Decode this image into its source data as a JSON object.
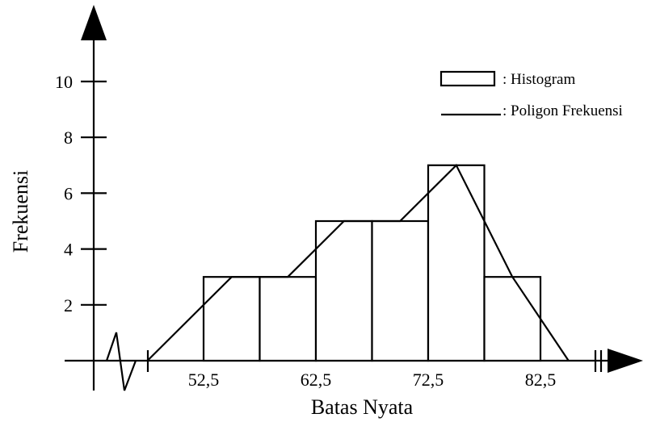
{
  "chart_data": {
    "type": "histogram",
    "xlabel": "Batas Nyata",
    "ylabel": "Frekuensi",
    "x_tick_labels": [
      "52,5",
      "62,5",
      "72,5",
      "82,5"
    ],
    "x_ticks": [
      52.5,
      62.5,
      72.5,
      82.5
    ],
    "y_ticks": [
      2,
      4,
      6,
      8,
      10
    ],
    "y_tick_labels": [
      "2",
      "4",
      "6",
      "8",
      "10"
    ],
    "bins": [
      {
        "start": 52.5,
        "end": 57.5,
        "value": 3
      },
      {
        "start": 57.5,
        "end": 62.5,
        "value": 3
      },
      {
        "start": 62.5,
        "end": 67.5,
        "value": 5
      },
      {
        "start": 67.5,
        "end": 72.5,
        "value": 5
      },
      {
        "start": 72.5,
        "end": 77.5,
        "value": 7
      },
      {
        "start": 77.5,
        "end": 82.5,
        "value": 3
      }
    ],
    "polygon": {
      "x": [
        47.5,
        55,
        60,
        65,
        70,
        75,
        80,
        85
      ],
      "y": [
        0,
        3,
        3,
        5,
        5,
        7,
        3,
        0
      ]
    },
    "legend": [
      {
        "symbol": "rect",
        "label": ": Histogram"
      },
      {
        "symbol": "line",
        "label": ": Poligon Frekuensi"
      }
    ],
    "legend_position": "top-right",
    "grid": false,
    "axis_break": true
  }
}
